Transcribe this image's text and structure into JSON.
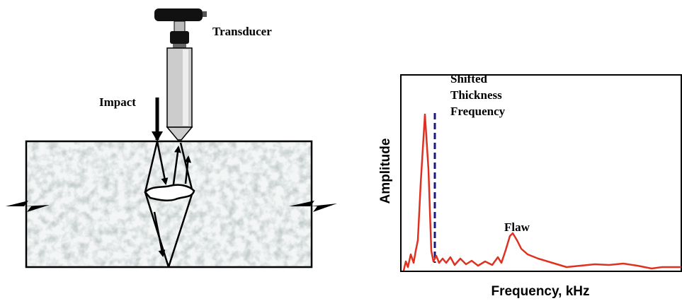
{
  "diagram": {
    "transducer_label": "Transducer",
    "impact_label": "Impact",
    "shifted_label": [
      "Shifted",
      "Thickness",
      "Frequency"
    ],
    "flaw_label": "Flaw",
    "y_axis_label": "Amplitude",
    "x_axis_label": "Frequency, kHz"
  }
}
